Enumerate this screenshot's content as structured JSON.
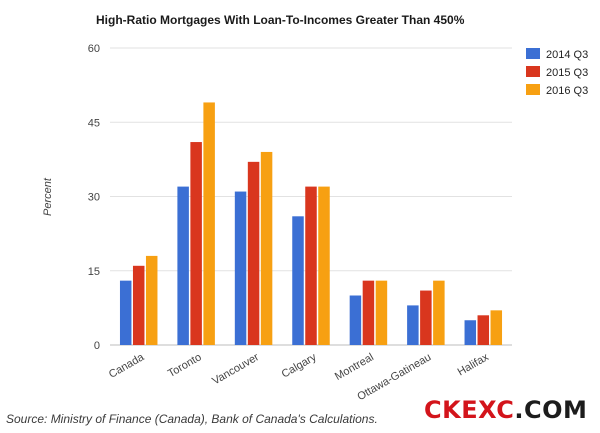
{
  "chart_data": {
    "type": "bar",
    "title": "High-Ratio Mortgages With Loan-To-Incomes Greater Than 450%",
    "ylabel": "Percent",
    "xlabel": "",
    "ylim": [
      0,
      60
    ],
    "yticks": [
      0,
      15,
      30,
      45,
      60
    ],
    "grid": true,
    "legend_position": "right",
    "categories": [
      "Canada",
      "Toronto",
      "Vancouver",
      "Calgary",
      "Montreal",
      "Ottawa-Gatineau",
      "Halifax"
    ],
    "series": [
      {
        "name": "2014 Q3",
        "color": "#3b6fd4",
        "values": [
          13,
          32,
          31,
          26,
          10,
          8,
          5
        ]
      },
      {
        "name": "2015 Q3",
        "color": "#d9361e",
        "values": [
          16,
          41,
          37,
          32,
          13,
          11,
          6
        ]
      },
      {
        "name": "2016 Q3",
        "color": "#f7a012",
        "values": [
          18,
          49,
          39,
          32,
          13,
          13,
          7
        ]
      }
    ]
  },
  "source_text": "Source: Ministry of Finance (Canada), Bank of Canada's Calculations.",
  "logo": {
    "part1": "CKEXC",
    "part2": ".COM"
  }
}
